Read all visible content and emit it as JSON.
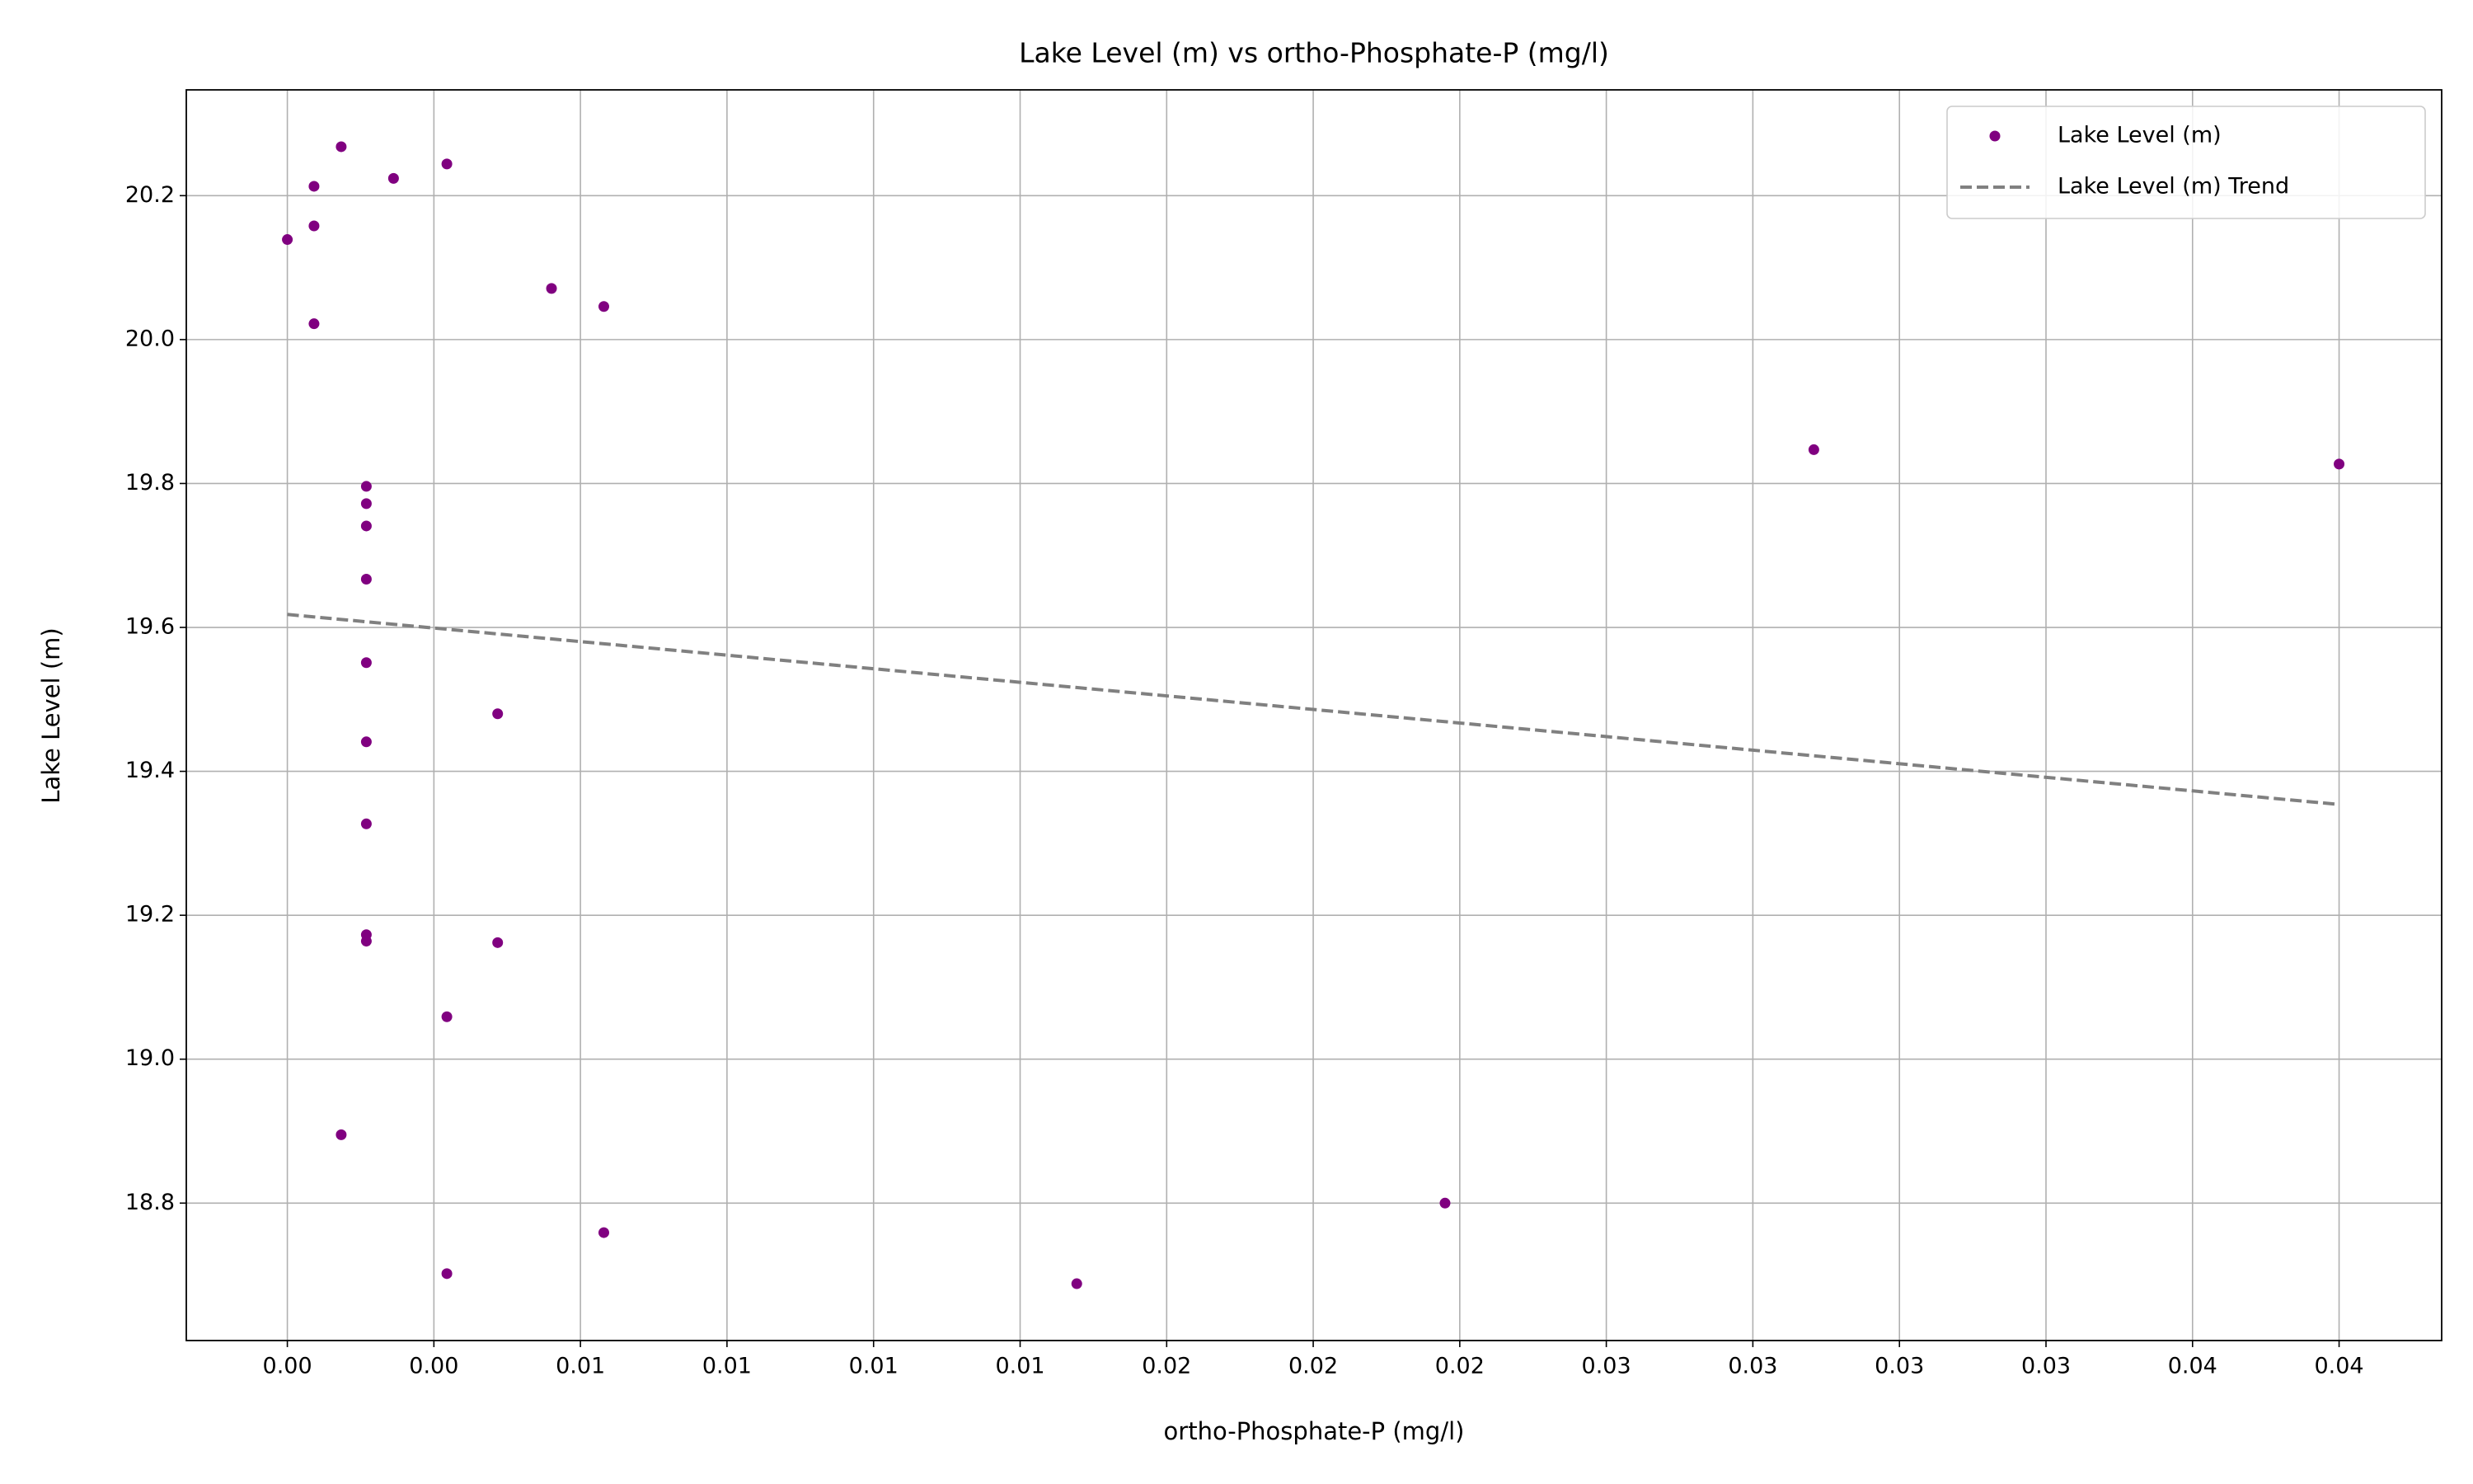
{
  "chart_data": {
    "type": "scatter",
    "title": "Lake Level (m) vs ortho-Phosphate-P (mg/l)",
    "x_label": "ortho-Phosphate-P (mg/l)",
    "y_label": "Lake Level (m)",
    "series": [
      {
        "name": "Lake Level (m)",
        "color": "#800080",
        "mode": "markers",
        "x": [
          0.00105,
          0.00311,
          0.00052,
          0.00207,
          0,
          0.00052,
          0.00515,
          0.00617,
          0.00052,
          0.02976,
          0.04,
          0.00154,
          0.00154,
          0.00154,
          0.00154,
          0.00154,
          0.0041,
          0.00154,
          0.00154,
          0.00154,
          0.00154,
          0.0041,
          0.00311,
          0.00105,
          0.00617,
          0.02257,
          0.00311,
          0.01539
        ],
        "values": [
          20.268,
          20.244,
          20.213,
          20.224,
          20.139,
          20.158,
          20.071,
          20.046,
          20.022,
          19.847,
          19.827,
          19.796,
          19.772,
          19.741,
          19.667,
          19.551,
          19.48,
          19.441,
          19.327,
          19.173,
          19.164,
          19.162,
          19.059,
          18.895,
          18.759,
          18.8,
          18.702,
          18.688
        ]
      },
      {
        "name": "Lake Level (m) Trend",
        "color": "#808080",
        "mode": "dashed-line",
        "x": [
          0,
          0.04
        ],
        "values": [
          19.618,
          19.354
        ]
      }
    ],
    "xlim": [
      -0.00197,
      0.042
    ],
    "ylim": [
      18.609,
      20.347
    ],
    "xticks": [
      {
        "value": 0,
        "label": "0.00"
      },
      {
        "value": 0.002857,
        "label": "0.00"
      },
      {
        "value": 0.005714,
        "label": "0.01"
      },
      {
        "value": 0.008571,
        "label": "0.01"
      },
      {
        "value": 0.011429,
        "label": "0.01"
      },
      {
        "value": 0.014286,
        "label": "0.01"
      },
      {
        "value": 0.017143,
        "label": "0.02"
      },
      {
        "value": 0.02,
        "label": "0.02"
      },
      {
        "value": 0.022857,
        "label": "0.02"
      },
      {
        "value": 0.025714,
        "label": "0.03"
      },
      {
        "value": 0.028571,
        "label": "0.03"
      },
      {
        "value": 0.031429,
        "label": "0.03"
      },
      {
        "value": 0.034286,
        "label": "0.03"
      },
      {
        "value": 0.037143,
        "label": "0.04"
      },
      {
        "value": 0.04,
        "label": "0.04"
      }
    ],
    "yticks": [
      18.8,
      {
        "value": 19,
        "label": "19.0"
      },
      19.2,
      19.4,
      19.6,
      19.8,
      {
        "value": 20,
        "label": "20.0"
      },
      20.2
    ],
    "grid": true,
    "legend": "upper right"
  }
}
